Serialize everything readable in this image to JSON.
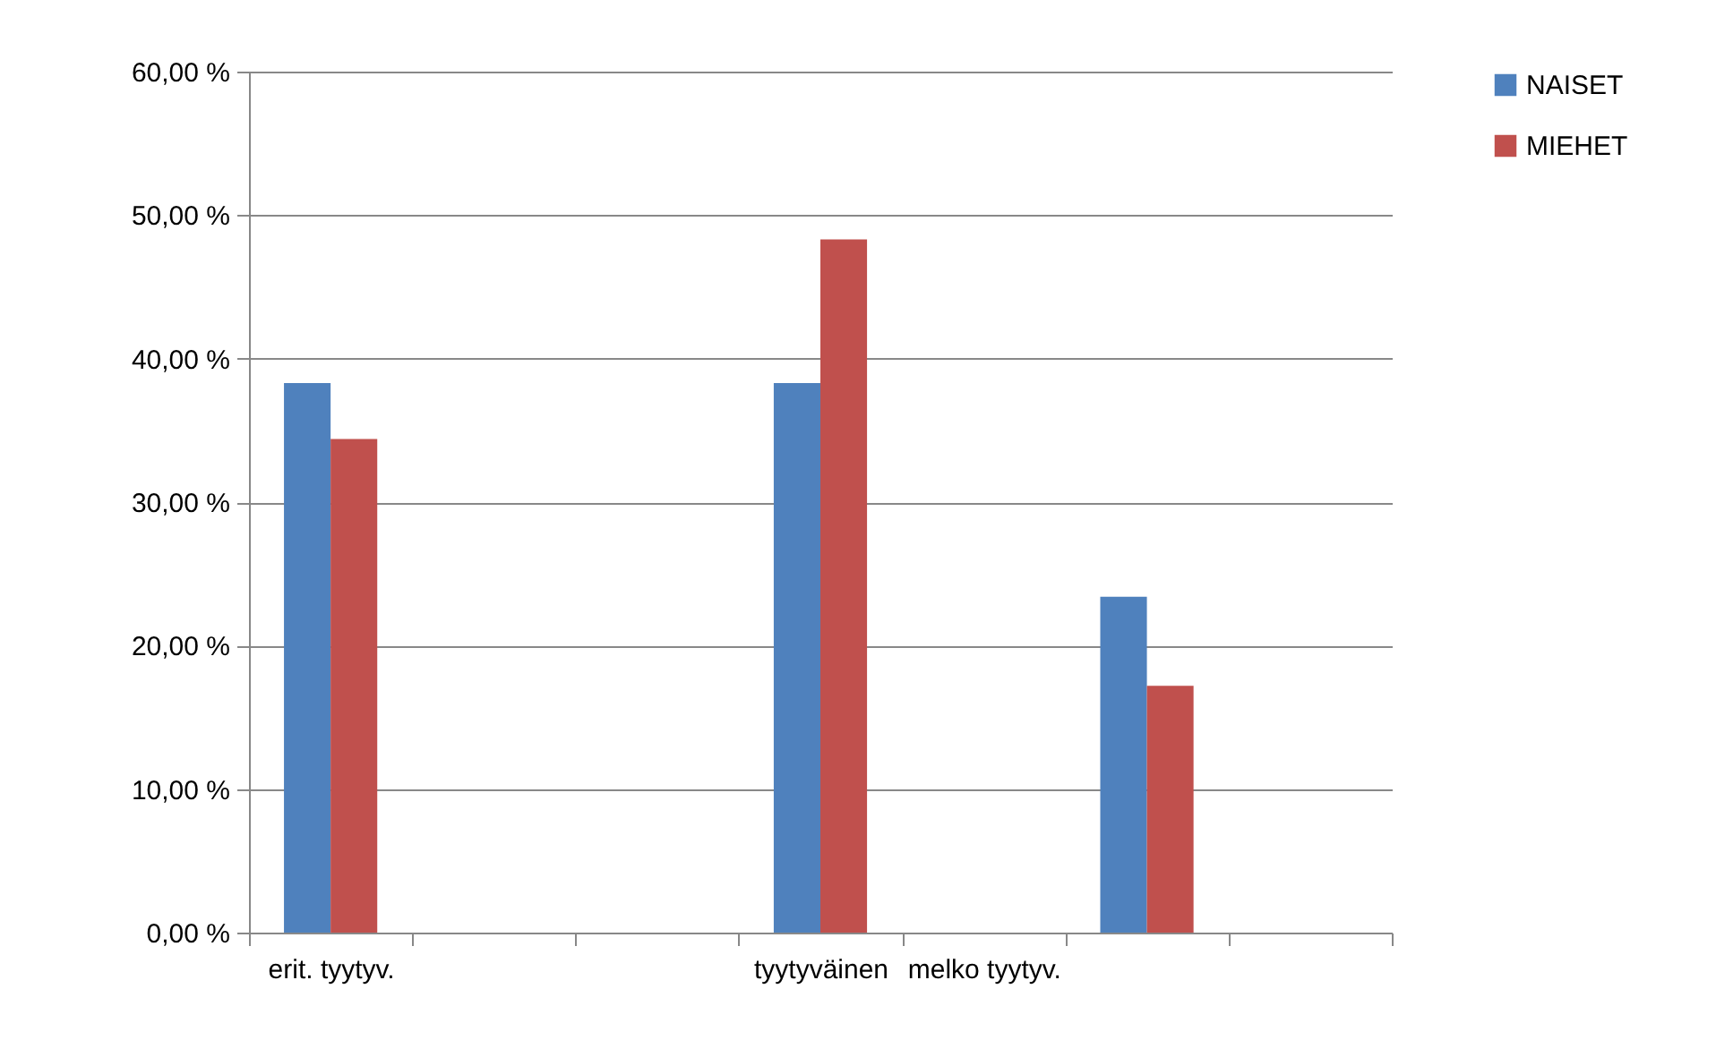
{
  "chart_data": {
    "type": "bar",
    "categories": [
      "erit. tyytyv.",
      null,
      null,
      "tyytyväinen",
      "melko tyytyv.",
      null,
      null
    ],
    "series": [
      {
        "name": "NAISET",
        "color": "#4f81bd",
        "values": [
          38.3,
          null,
          null,
          38.3,
          null,
          23.4,
          null
        ]
      },
      {
        "name": "MIEHET",
        "color": "#c0504d",
        "values": [
          34.4,
          null,
          null,
          48.3,
          null,
          17.2,
          null
        ]
      }
    ],
    "ylim": [
      0,
      60
    ],
    "yticks": [
      {
        "value": 0,
        "label": "0,00 %"
      },
      {
        "value": 10,
        "label": "10,00 %"
      },
      {
        "value": 20,
        "label": "20,00 %"
      },
      {
        "value": 30,
        "label": "30,00 %"
      },
      {
        "value": 40,
        "label": "40,00 %"
      },
      {
        "value": 50,
        "label": "50,00 %"
      },
      {
        "value": 60,
        "label": "60,00 %"
      }
    ],
    "grid": "y",
    "legend": "right"
  }
}
